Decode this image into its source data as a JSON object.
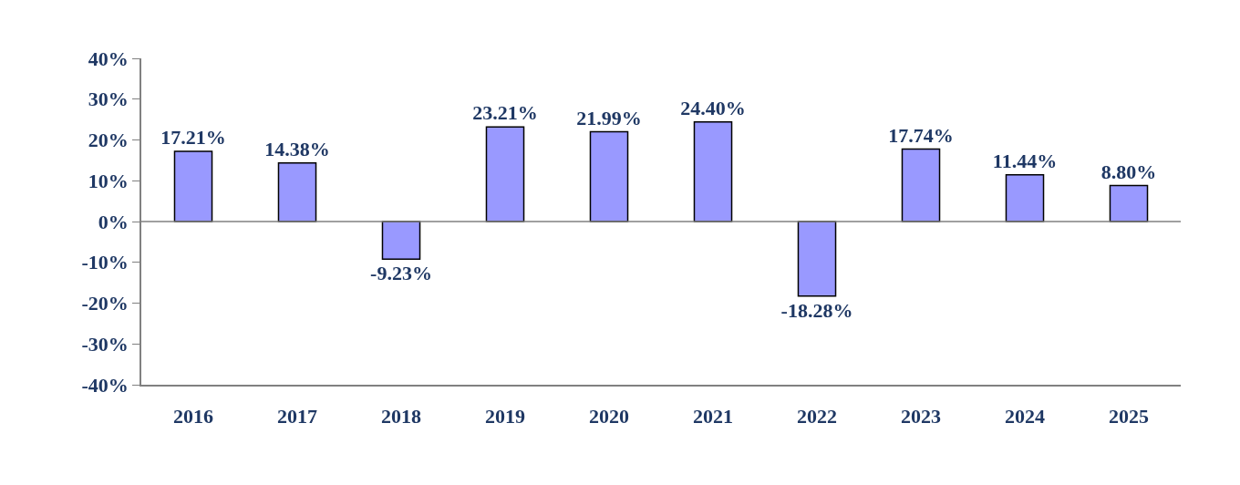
{
  "chart_data": {
    "type": "bar",
    "categories": [
      "2016",
      "2017",
      "2018",
      "2019",
      "2020",
      "2021",
      "2022",
      "2023",
      "2024",
      "2025"
    ],
    "values": [
      17.21,
      14.38,
      -9.23,
      23.21,
      21.99,
      24.4,
      -18.28,
      17.74,
      11.44,
      8.8
    ],
    "value_labels": [
      "17.21%",
      "14.38%",
      "-9.23%",
      "23.21%",
      "21.99%",
      "24.40%",
      "-18.28%",
      "17.74%",
      "11.44%",
      "8.80%"
    ],
    "color": "#9999ff",
    "ylim": [
      -40,
      40
    ],
    "yticks": [
      {
        "value": -40,
        "label": "-40%"
      },
      {
        "value": -30,
        "label": "-30%"
      },
      {
        "value": -20,
        "label": "-20%"
      },
      {
        "value": -10,
        "label": "-10%"
      },
      {
        "value": 0,
        "label": "0%"
      },
      {
        "value": 10,
        "label": "10%"
      },
      {
        "value": 20,
        "label": "20%"
      },
      {
        "value": 30,
        "label": "30%"
      },
      {
        "value": 40,
        "label": "40%"
      }
    ],
    "ref_lines": [
      {
        "axis": "y",
        "value": 0,
        "color": "#808080",
        "line_style": "solid"
      }
    ],
    "grid": false
  }
}
